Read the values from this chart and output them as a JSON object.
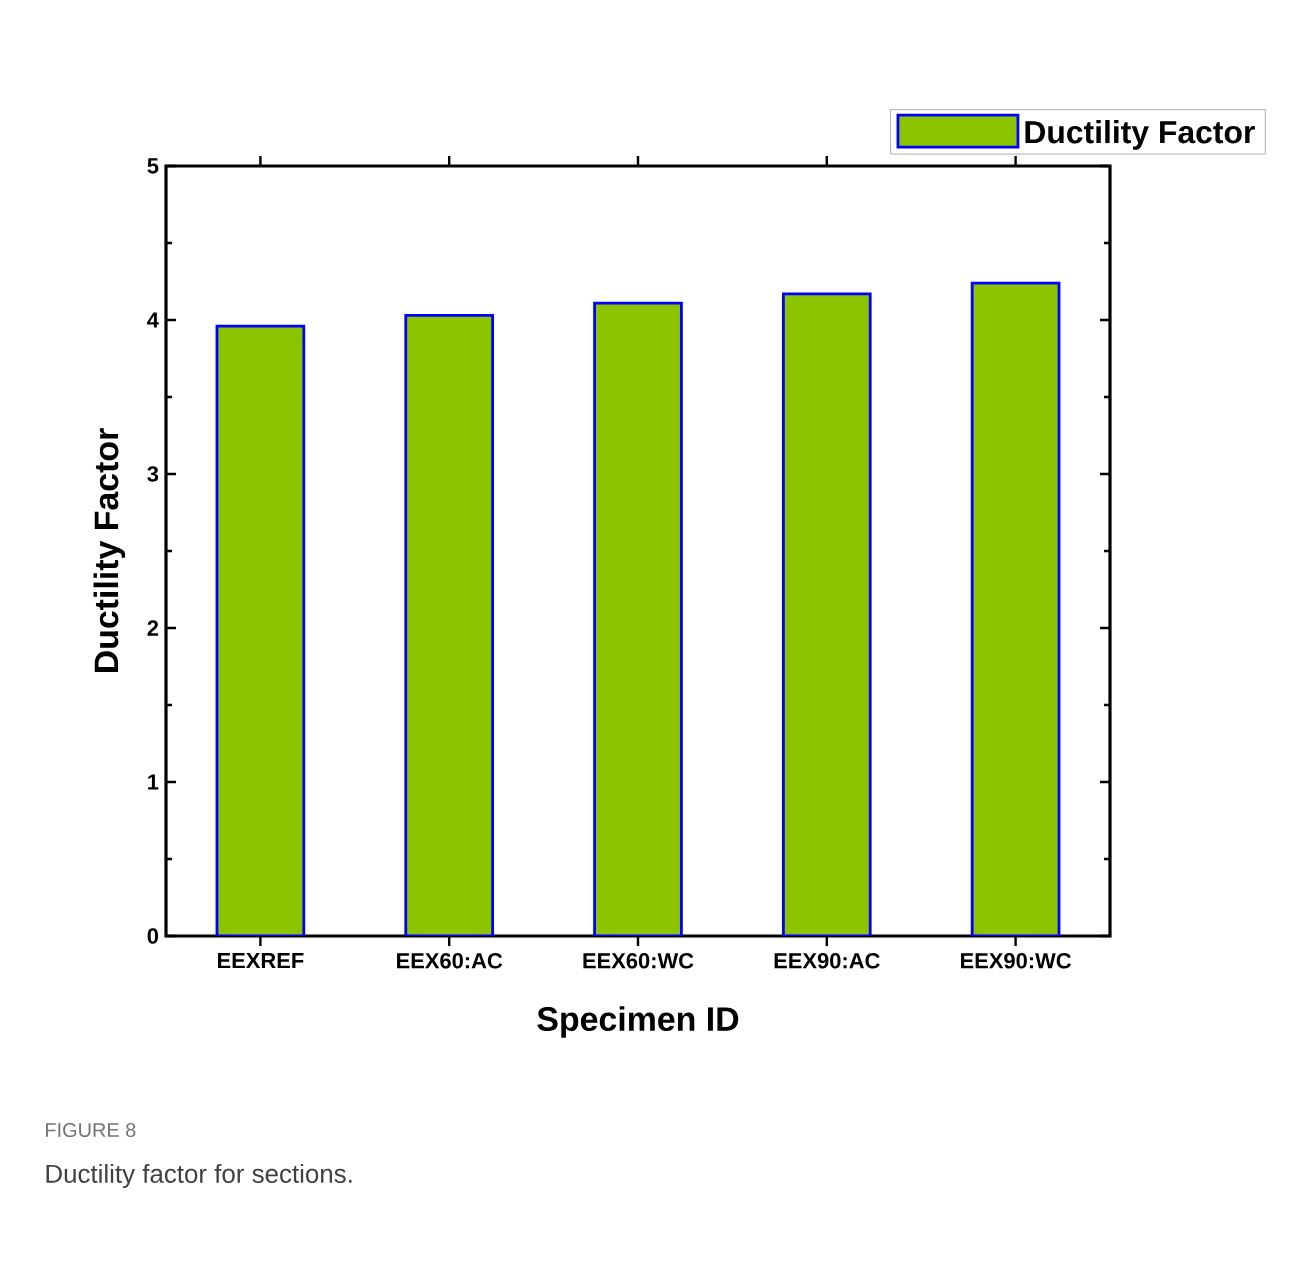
{
  "chart_data": {
    "type": "bar",
    "xlabel": "Specimen ID",
    "ylabel": "Ductility Factor",
    "categories": [
      "EEXREF",
      "EEX60:AC",
      "EEX60:WC",
      "EEX90:AC",
      "EEX90:WC"
    ],
    "series": [
      {
        "name": "Ductility Factor",
        "color": "#8cc400",
        "values": [
          3.96,
          4.03,
          4.11,
          4.17,
          4.24
        ]
      }
    ],
    "ylim": [
      0,
      5
    ],
    "yticks": [
      0,
      1,
      2,
      3,
      4,
      5
    ],
    "grid": false,
    "legend": "top right",
    "annotations": [
      "FIGURE 8",
      "Ductility factor for sections."
    ]
  }
}
